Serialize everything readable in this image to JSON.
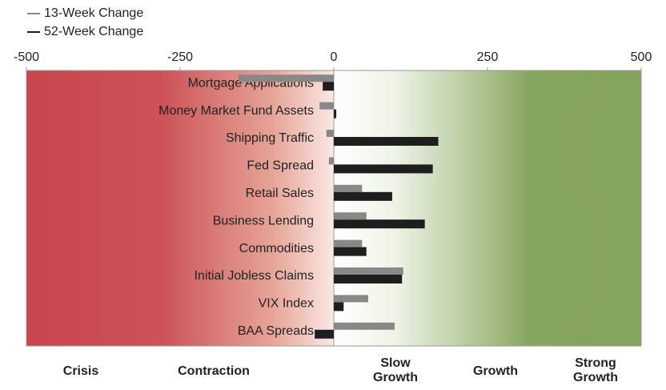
{
  "chart_data": {
    "type": "barh",
    "categories": [
      "Mortgage Applications",
      "Money Market Fund Assets",
      "Shipping Traffic",
      "Fed Spread",
      "Retail Sales",
      "Business Lending",
      "Commodities",
      "Initial Jobless Claims",
      "VIX Index",
      "BAA Spreads"
    ],
    "series": [
      {
        "name": "13-Week Change",
        "color": "#888888",
        "values": [
          -155,
          -23,
          -12,
          -8,
          46,
          53,
          46,
          113,
          56,
          99
        ]
      },
      {
        "name": "52-Week Change",
        "color": "#1e1e1e",
        "values": [
          -18,
          4,
          170,
          161,
          95,
          148,
          53,
          111,
          16,
          -31
        ]
      }
    ],
    "xlim": [
      -500,
      500
    ],
    "xticks": [
      -500,
      -250,
      0,
      250,
      500
    ],
    "zones": [
      [
        "Crisis"
      ],
      [
        "Contraction"
      ],
      [
        "Slow",
        "Growth"
      ],
      [
        "Growth"
      ],
      [
        "Strong",
        "Growth"
      ]
    ],
    "legend": "top-left"
  }
}
